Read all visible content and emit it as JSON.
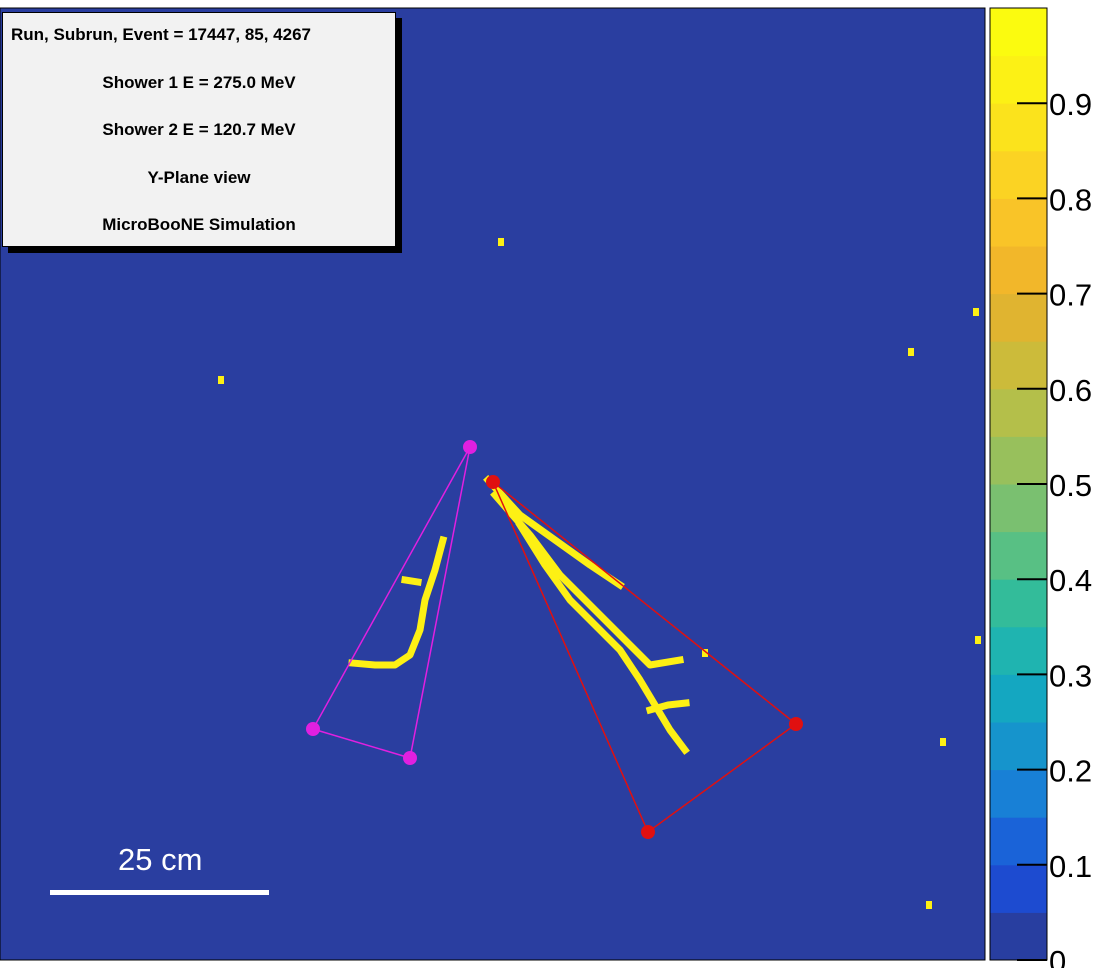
{
  "infobox": {
    "lines": [
      "Run, Subrun, Event = 17447, 85, 4267",
      "Shower 1 E = 275.0 MeV",
      "Shower 2 E = 120.7 MeV",
      "Y-Plane view",
      "MicroBooNE Simulation"
    ]
  },
  "scalebar": {
    "label": "25 cm"
  },
  "chart_data": {
    "type": "heatmap",
    "title": "",
    "xlabel": "",
    "ylabel": "",
    "background_color": "#2a3ea0",
    "hit_color": "#fdf014",
    "colorbar": {
      "range": [
        0,
        1
      ],
      "ticks": [
        0,
        0.1,
        0.2,
        0.3,
        0.4,
        0.5,
        0.6,
        0.7,
        0.8,
        0.9
      ],
      "tick_labels": [
        "0",
        "0.1",
        "0.2",
        "0.3",
        "0.4",
        "0.5",
        "0.6",
        "0.7",
        "0.8",
        "0.9"
      ],
      "colors": [
        "#283ea0",
        "#1d4bd0",
        "#1a63d8",
        "#1880d6",
        "#1694cc",
        "#14a7c1",
        "#1fb4b0",
        "#33bc9a",
        "#58c084",
        "#7ac070",
        "#98c05c",
        "#b4bf4a",
        "#ccbb3a",
        "#e0b430",
        "#f2b72a",
        "#f9c428",
        "#fbd323",
        "#fbe31c",
        "#fcf115",
        "#fbfb0f"
      ]
    },
    "vertices": {
      "shower_1": {
        "color": "#e01010",
        "points": [
          [
            493,
            482
          ],
          [
            796,
            724
          ],
          [
            648,
            832
          ]
        ]
      },
      "shower_2": {
        "color": "#e020e0",
        "points": [
          [
            470,
            447
          ],
          [
            313,
            729
          ],
          [
            410,
            758
          ]
        ]
      }
    },
    "hit_tracks": [
      [
        [
          488,
          480
        ],
        [
          520,
          515
        ],
        [
          555,
          540
        ],
        [
          590,
          565
        ],
        [
          620,
          585
        ]
      ],
      [
        [
          495,
          495
        ],
        [
          530,
          535
        ],
        [
          560,
          575
        ],
        [
          590,
          605
        ],
        [
          620,
          635
        ],
        [
          650,
          665
        ],
        [
          680,
          660
        ]
      ],
      [
        [
          520,
          525
        ],
        [
          545,
          565
        ],
        [
          570,
          600
        ],
        [
          595,
          625
        ],
        [
          620,
          650
        ],
        [
          640,
          680
        ],
        [
          655,
          705
        ],
        [
          670,
          730
        ],
        [
          685,
          750
        ]
      ],
      [
        [
          650,
          710
        ],
        [
          668,
          705
        ],
        [
          686,
          703
        ]
      ],
      [
        [
          443,
          540
        ],
        [
          435,
          570
        ],
        [
          425,
          600
        ],
        [
          420,
          630
        ],
        [
          410,
          655
        ],
        [
          395,
          665
        ],
        [
          375,
          665
        ],
        [
          352,
          663
        ]
      ],
      [
        [
          405,
          580
        ],
        [
          418,
          582
        ]
      ]
    ],
    "isolated_hits": [
      [
        501,
        242
      ],
      [
        221,
        380
      ],
      [
        911,
        352
      ],
      [
        976,
        312
      ],
      [
        705,
        653
      ],
      [
        943,
        742
      ],
      [
        978,
        640
      ],
      [
        929,
        905
      ]
    ]
  }
}
